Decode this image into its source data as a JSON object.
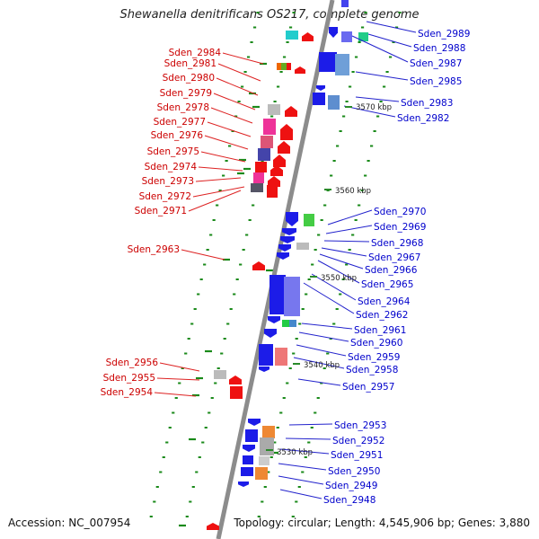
{
  "title": "Shewanella denitrificans OS217, complete genome",
  "footer": {
    "accession": "Accession: NC_007954",
    "summary": "Topology: circular; Length: 4,545,906 bp; Genes: 3,880"
  },
  "colors": {
    "forward_gene": "#1c1ce8",
    "reverse_gene": "#ee1111",
    "backbone": "#8c8c8c",
    "tick": "#1a8a1a",
    "left_label": "#cc0000",
    "right_label": "#0000cc",
    "leader_left": "#dd2222",
    "leader_right": "#2222cc"
  },
  "scale_labels": [
    "3570 kbp",
    "3560 kbp",
    "3550 kbp",
    "3540 kbp",
    "3530 kbp"
  ],
  "left_genes": [
    "Sden_2984",
    "Sden_2981",
    "Sden_2980",
    "Sden_2979",
    "Sden_2978",
    "Sden_2977",
    "Sden_2976",
    "Sden_2975",
    "Sden_2974",
    "Sden_2973",
    "Sden_2972",
    "Sden_2971",
    "Sden_2963",
    "Sden_2956",
    "Sden_2955",
    "Sden_2954"
  ],
  "right_genes": [
    "Sden_2989",
    "Sden_2988",
    "Sden_2987",
    "Sden_2985",
    "Sden_2983",
    "Sden_2982",
    "Sden_2970",
    "Sden_2969",
    "Sden_2968",
    "Sden_2967",
    "Sden_2966",
    "Sden_2965",
    "Sden_2964",
    "Sden_2962",
    "Sden_2961",
    "Sden_2960",
    "Sden_2959",
    "Sden_2958",
    "Sden_2957",
    "Sden_2953",
    "Sden_2952",
    "Sden_2951",
    "Sden_2950",
    "Sden_2949",
    "Sden_2948"
  ]
}
